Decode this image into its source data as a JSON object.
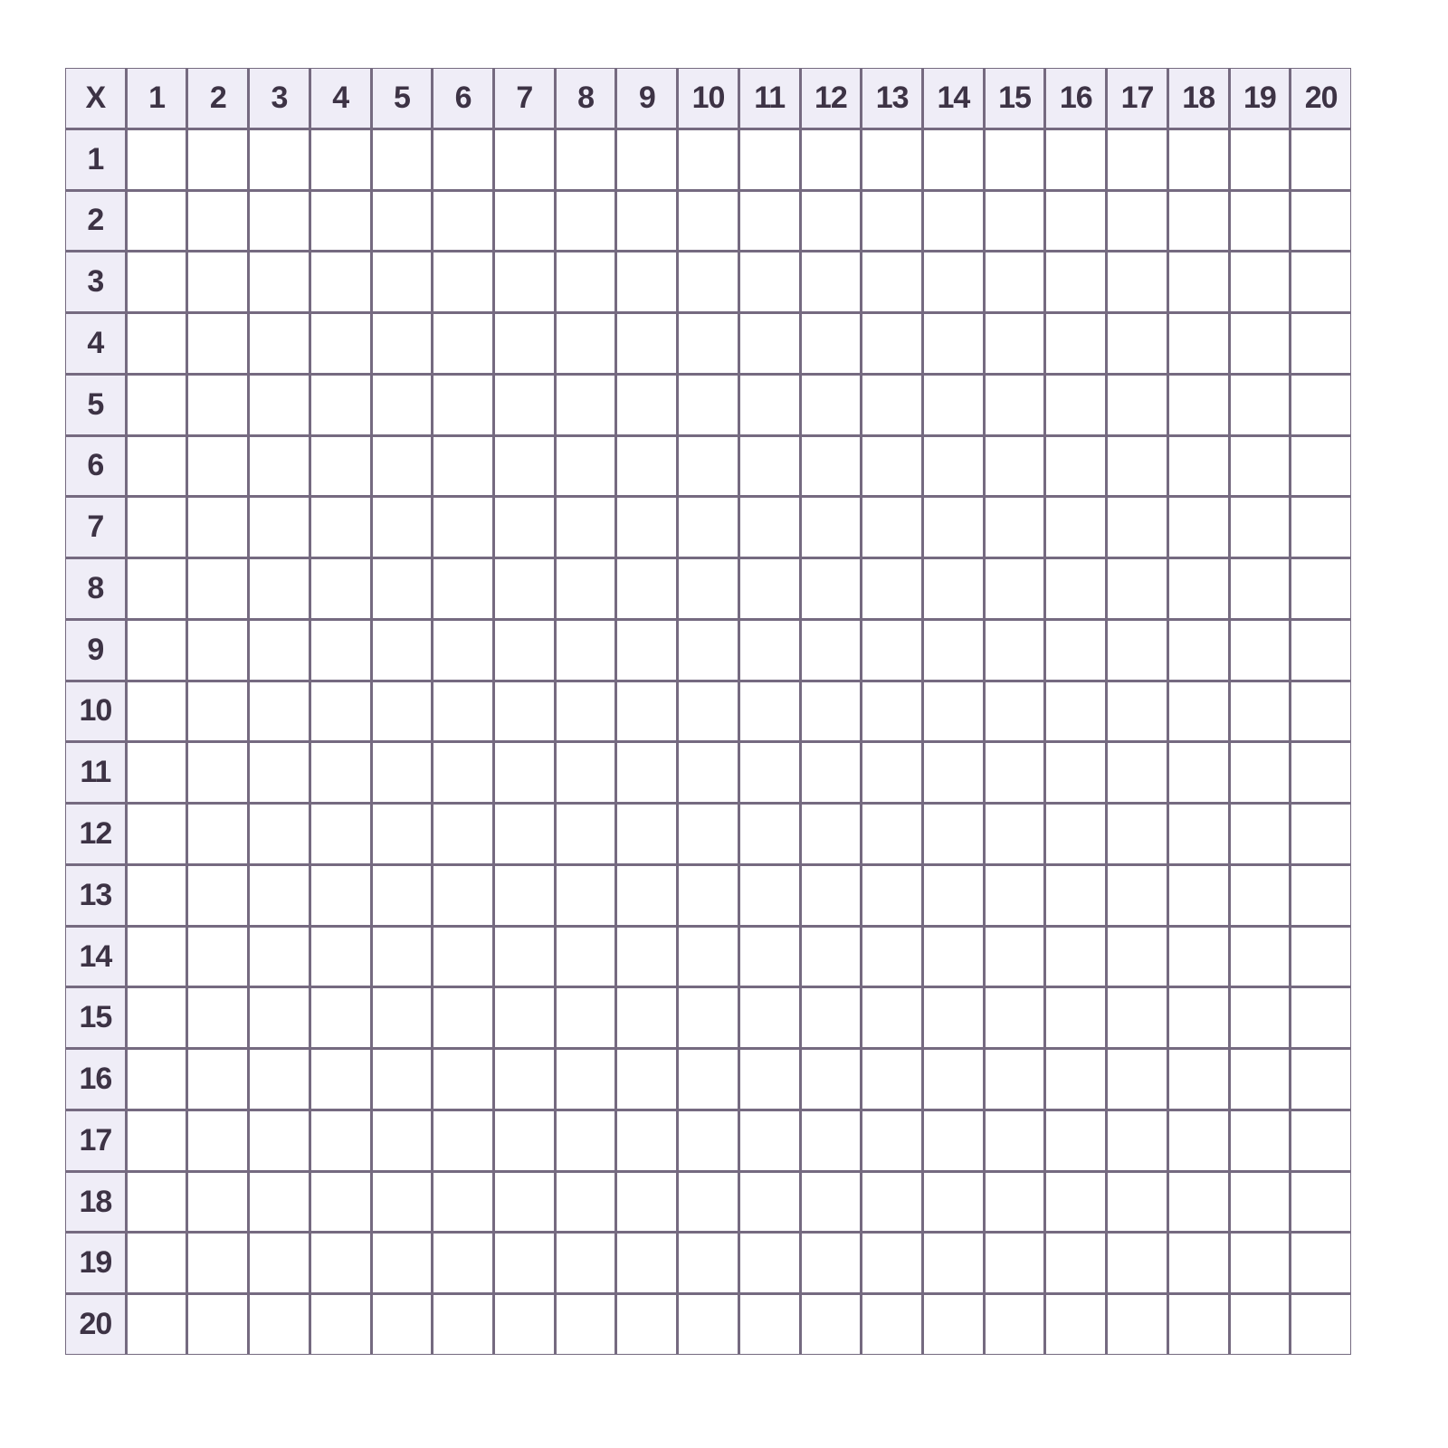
{
  "table": {
    "corner_label": "X",
    "column_headers": [
      "1",
      "2",
      "3",
      "4",
      "5",
      "6",
      "7",
      "8",
      "9",
      "10",
      "11",
      "12",
      "13",
      "14",
      "15",
      "16",
      "17",
      "18",
      "19",
      "20"
    ],
    "row_headers": [
      "1",
      "2",
      "3",
      "4",
      "5",
      "6",
      "7",
      "8",
      "9",
      "10",
      "11",
      "12",
      "13",
      "14",
      "15",
      "16",
      "17",
      "18",
      "19",
      "20"
    ]
  },
  "colors": {
    "grid_line": "#756a80",
    "header_background": "#efedf7",
    "header_text": "#3d3345",
    "cell_background": "#ffffff"
  }
}
